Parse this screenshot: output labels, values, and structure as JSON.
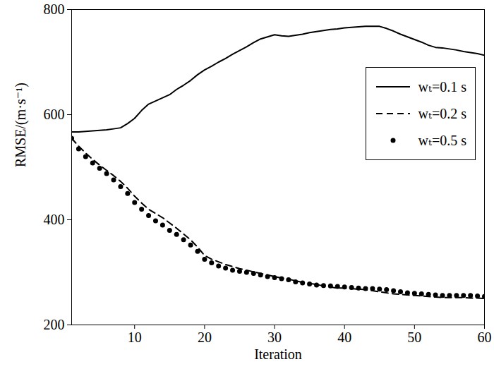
{
  "chart_data": {
    "type": "line",
    "x_label": "Iteration",
    "y_label": "RMSE/(m·s⁻¹)",
    "x": [
      1,
      2,
      3,
      4,
      5,
      6,
      7,
      8,
      9,
      10,
      11,
      12,
      13,
      14,
      15,
      16,
      17,
      18,
      19,
      20,
      21,
      22,
      23,
      24,
      25,
      26,
      27,
      28,
      29,
      30,
      31,
      32,
      33,
      34,
      35,
      36,
      37,
      38,
      39,
      40,
      41,
      42,
      43,
      44,
      45,
      46,
      47,
      48,
      49,
      50,
      51,
      52,
      53,
      54,
      55,
      56,
      57,
      58,
      59,
      60
    ],
    "series": [
      {
        "name": "wₜ=0.1 s",
        "color": "#000000",
        "line_style": "solid",
        "values": [
          567,
          567,
          568,
          569,
          570,
          571,
          573,
          575,
          583,
          593,
          608,
          620,
          626,
          632,
          638,
          648,
          656,
          665,
          676,
          685,
          692,
          700,
          707,
          715,
          722,
          729,
          737,
          744,
          748,
          752,
          750,
          749,
          751,
          753,
          756,
          758,
          760,
          762,
          763,
          765,
          766,
          767,
          768,
          768,
          768,
          764,
          759,
          753,
          748,
          743,
          738,
          732,
          728,
          727,
          725,
          723,
          720,
          718,
          716,
          713
        ]
      },
      {
        "name": "wₜ=0.2 s",
        "color": "#000000",
        "line_style": "dashed",
        "values": [
          555,
          540,
          527,
          515,
          504,
          494,
          484,
          473,
          460,
          445,
          432,
          420,
          412,
          404,
          394,
          384,
          373,
          362,
          348,
          332,
          325,
          320,
          315,
          311,
          307,
          304,
          301,
          298,
          295,
          292,
          289,
          287,
          284,
          281,
          279,
          277,
          274,
          272,
          270,
          270,
          269,
          268,
          267,
          265,
          263,
          261,
          259,
          258,
          257,
          256,
          255,
          254,
          253,
          252,
          252,
          252,
          252,
          251,
          251,
          250
        ]
      },
      {
        "name": "wₜ=0.5 s",
        "color": "#000000",
        "type": "scatter",
        "marker": "circle",
        "values": [
          555,
          535,
          520,
          508,
          498,
          488,
          476,
          463,
          450,
          433,
          420,
          408,
          398,
          390,
          380,
          372,
          362,
          352,
          340,
          325,
          318,
          312,
          308,
          304,
          302,
          300,
          298,
          295,
          292,
          290,
          288,
          286,
          282,
          280,
          278,
          276,
          275,
          274,
          273,
          272,
          271,
          270,
          269,
          269,
          268,
          267,
          265,
          263,
          261,
          260,
          259,
          258,
          257,
          256,
          256,
          256,
          256,
          256,
          255,
          254
        ]
      }
    ],
    "xlim": [
      1,
      60
    ],
    "xticks": [
      10,
      20,
      30,
      40,
      50,
      60
    ],
    "ylim": [
      200,
      800
    ],
    "yticks": [
      200,
      400,
      600,
      800
    ],
    "grid": false,
    "legend": "upper right"
  }
}
